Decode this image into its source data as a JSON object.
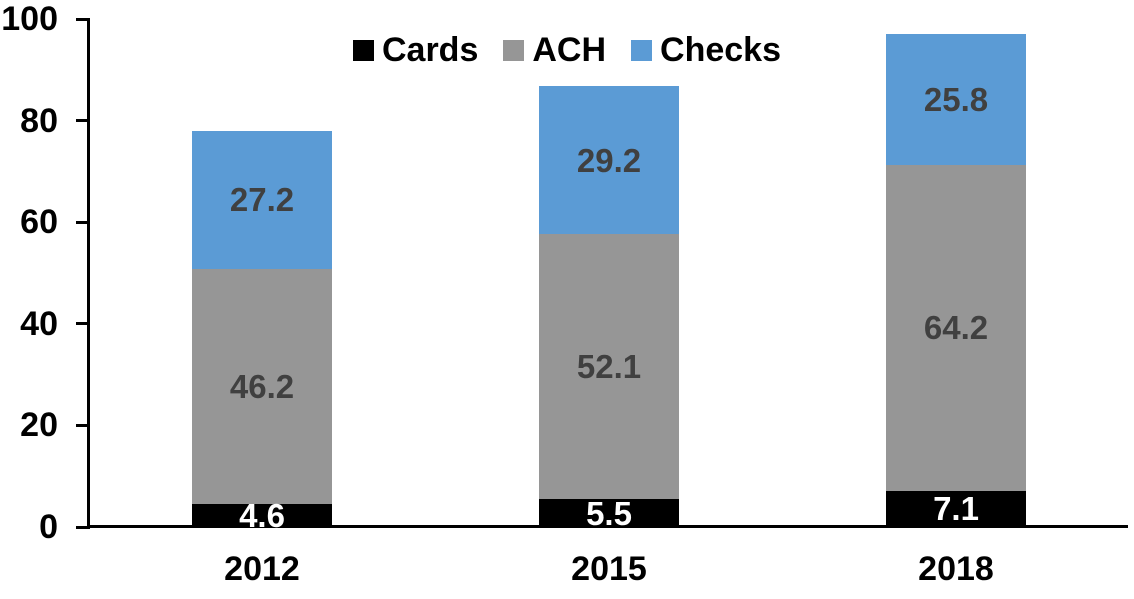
{
  "chart_data": {
    "type": "bar",
    "stacked": true,
    "title": "",
    "xlabel": "",
    "ylabel": "",
    "categories": [
      "2012",
      "2015",
      "2018"
    ],
    "series": [
      {
        "name": "Cards",
        "color": "#000000",
        "label_color": "#ffffff",
        "values": [
          4.6,
          5.5,
          7.1
        ]
      },
      {
        "name": "ACH",
        "color": "#969696",
        "label_color": "#404040",
        "values": [
          46.2,
          52.1,
          64.2
        ]
      },
      {
        "name": "Checks",
        "color": "#5b9bd5",
        "label_color": "#404040",
        "values": [
          27.2,
          29.2,
          25.8
        ]
      }
    ],
    "y_axis": {
      "min": 0,
      "max": 100,
      "tick_step": 20,
      "tick_labels": [
        "0",
        "20",
        "40",
        "60",
        "80",
        "100"
      ]
    },
    "legend": {
      "position": "top-center",
      "entries": [
        "Cards",
        "ACH",
        "Checks"
      ]
    },
    "grid": false,
    "colors": {
      "axis": "#000000",
      "data_label_dark": "#404040",
      "data_label_light": "#ffffff",
      "background": "#ffffff"
    }
  }
}
